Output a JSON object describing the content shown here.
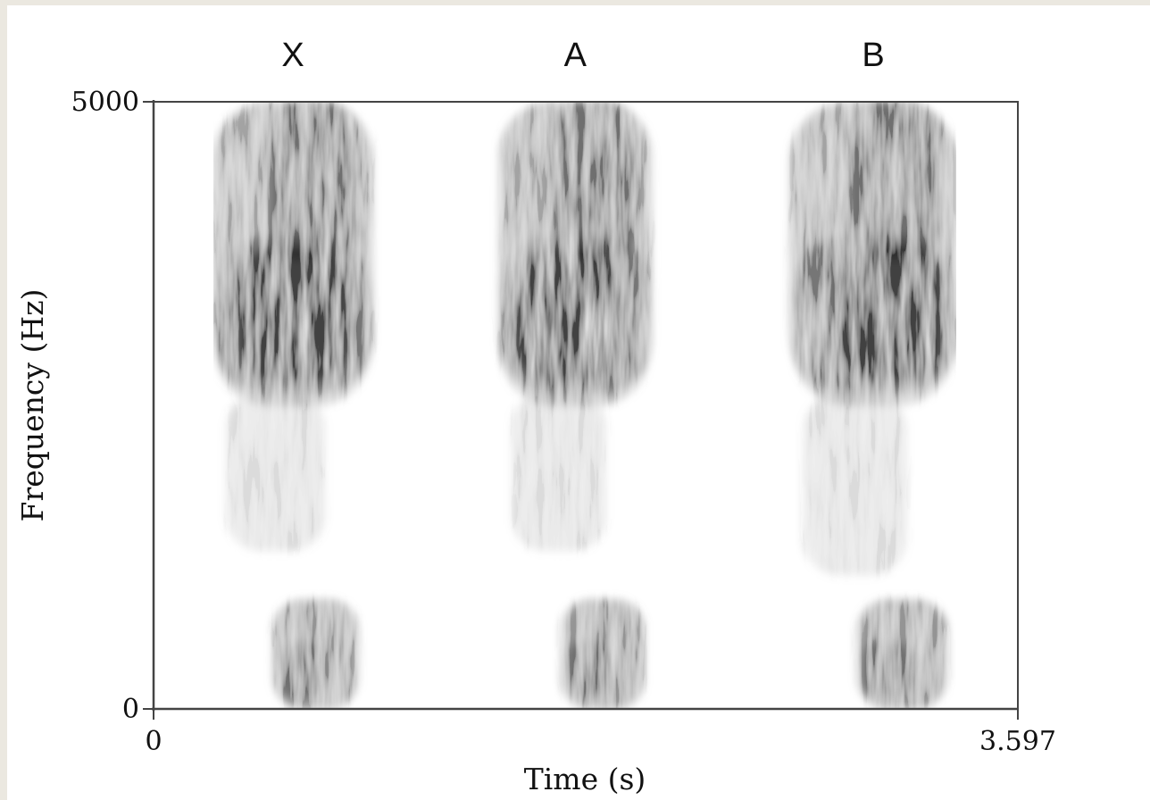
{
  "chart_data": {
    "type": "heatmap",
    "subtype": "spectrogram",
    "title": "",
    "segment_labels": [
      "X",
      "A",
      "B"
    ],
    "xlabel": "Time (s)",
    "ylabel": "Frequency (Hz)",
    "xlim": [
      0,
      3.597
    ],
    "ylim": [
      0,
      5000
    ],
    "x_ticks": [
      "0",
      "3.597"
    ],
    "y_ticks": [
      "0",
      "5000"
    ],
    "grid": false,
    "colormap": "greyscale",
    "stimuli": [
      {
        "label": "X",
        "frication": {
          "t_start": 0.25,
          "t_end": 0.91,
          "f_low": 1300,
          "f_high": 5000,
          "peak_freq": 3300,
          "band_t_start": 0.45,
          "band_t_end": 0.78
        },
        "voicing": {
          "t_start": 0.5,
          "t_end": 0.85,
          "f_low": 0,
          "f_high": 900
        }
      },
      {
        "label": "A",
        "frication": {
          "t_start": 1.44,
          "t_end": 2.07,
          "f_low": 1300,
          "f_high": 5000,
          "peak_freq": 3300,
          "band_t_start": 1.6,
          "band_t_end": 1.9
        },
        "voicing": {
          "t_start": 1.7,
          "t_end": 2.04,
          "f_low": 0,
          "f_high": 900
        }
      },
      {
        "label": "B",
        "frication": {
          "t_start": 2.65,
          "t_end": 3.34,
          "f_low": 1100,
          "f_high": 5000,
          "peak_freq": 3300,
          "band_t_start": 2.95,
          "band_t_end": 3.25
        },
        "voicing": {
          "t_start": 2.93,
          "t_end": 3.3,
          "f_low": 0,
          "f_high": 900
        }
      }
    ],
    "colors": {
      "axis": "#444444",
      "ink": "#111111",
      "background": "#ffffff",
      "page": "#ebe8e0"
    }
  }
}
